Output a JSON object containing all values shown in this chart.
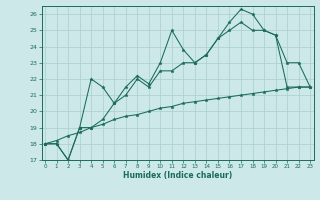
{
  "xlabel": "Humidex (Indice chaleur)",
  "bg_color": "#cce8e8",
  "grid_color": "#aacece",
  "line_color": "#1a6b5a",
  "x_values": [
    0,
    1,
    2,
    3,
    4,
    5,
    6,
    7,
    8,
    9,
    10,
    11,
    12,
    13,
    14,
    15,
    16,
    17,
    18,
    19,
    20,
    21,
    22,
    23
  ],
  "line1": [
    18.0,
    18.0,
    17.0,
    19.0,
    22.0,
    21.5,
    20.5,
    21.5,
    22.2,
    21.7,
    23.0,
    25.0,
    23.8,
    23.0,
    23.5,
    24.5,
    25.5,
    26.3,
    26.0,
    25.0,
    24.7,
    23.0,
    23.0,
    21.5
  ],
  "line2": [
    18.0,
    18.0,
    17.0,
    19.0,
    19.0,
    19.5,
    20.5,
    21.0,
    22.0,
    21.5,
    22.5,
    22.5,
    23.0,
    23.0,
    23.5,
    24.5,
    25.0,
    25.5,
    25.0,
    25.0,
    24.7,
    21.5,
    21.5,
    21.5
  ],
  "line3": [
    18.0,
    18.2,
    18.5,
    18.7,
    19.0,
    19.2,
    19.5,
    19.7,
    19.8,
    20.0,
    20.2,
    20.3,
    20.5,
    20.6,
    20.7,
    20.8,
    20.9,
    21.0,
    21.1,
    21.2,
    21.3,
    21.4,
    21.5,
    21.5
  ],
  "ylim": [
    17,
    26.5
  ],
  "xlim": [
    -0.3,
    23.3
  ],
  "yticks": [
    17,
    18,
    19,
    20,
    21,
    22,
    23,
    24,
    25,
    26
  ],
  "xticks": [
    0,
    1,
    2,
    3,
    4,
    5,
    6,
    7,
    8,
    9,
    10,
    11,
    12,
    13,
    14,
    15,
    16,
    17,
    18,
    19,
    20,
    21,
    22,
    23
  ]
}
